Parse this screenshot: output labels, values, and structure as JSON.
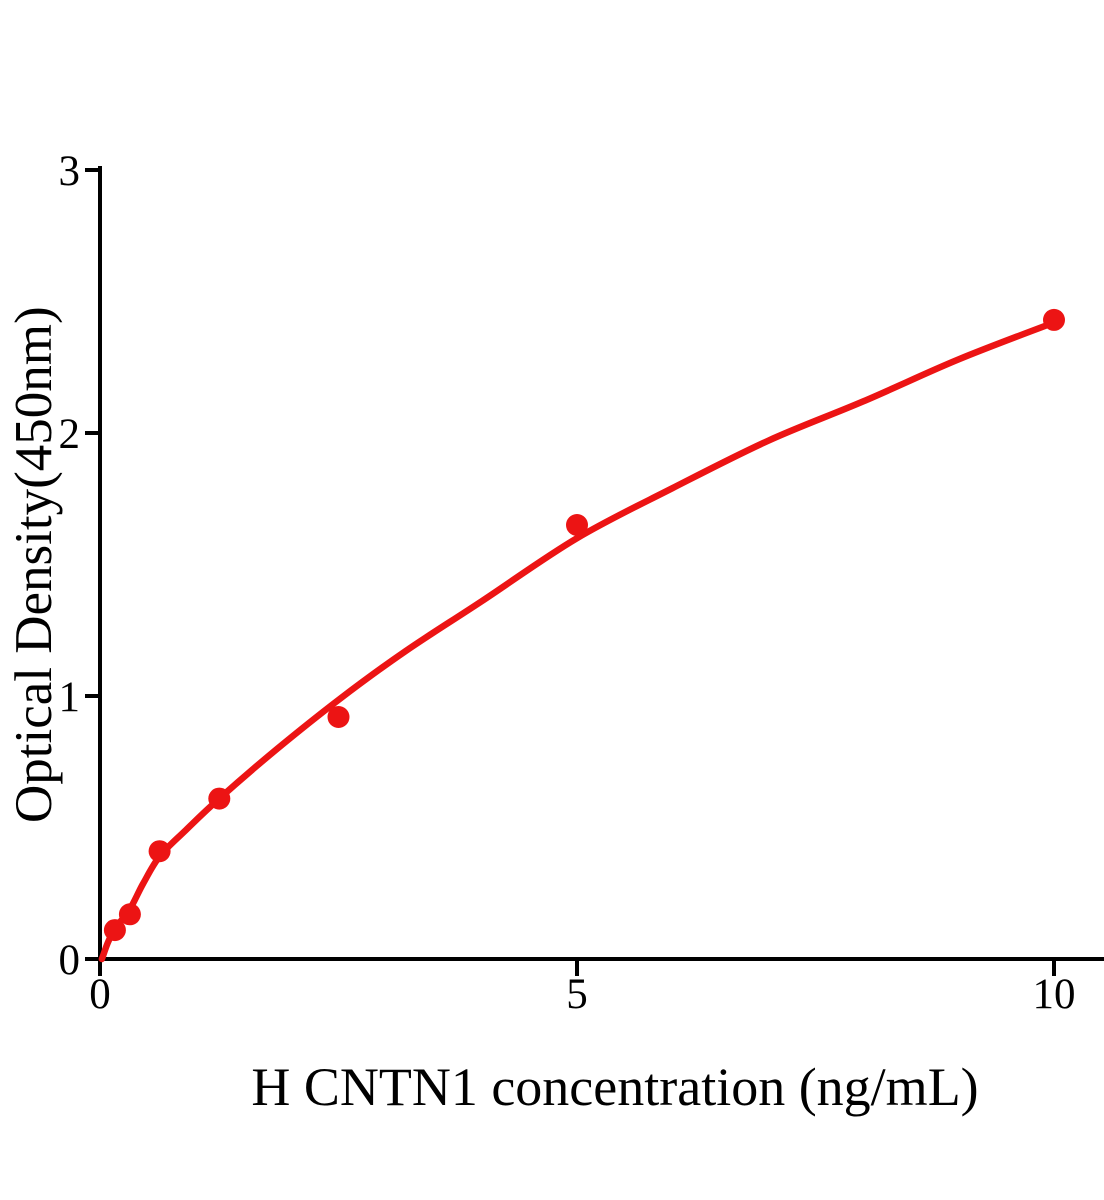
{
  "figure": {
    "background": "#ffffff"
  },
  "chart_data": {
    "type": "scatter",
    "title": "",
    "xlabel": "H CNTN1 concentration (ng/mL)",
    "ylabel": "Optical Density(450nm)",
    "xlim": [
      0,
      10.55
    ],
    "ylim": [
      0,
      3
    ],
    "x_ticks": [
      0,
      5,
      10
    ],
    "y_ticks": [
      0,
      1,
      2,
      3
    ],
    "grid": false,
    "legend": false,
    "axis_color": "#000000",
    "marker_color": "#ec1414",
    "curve_color": "#ec1414",
    "points": [
      {
        "x": 0.156,
        "y": 0.11
      },
      {
        "x": 0.313,
        "y": 0.17
      },
      {
        "x": 0.625,
        "y": 0.41
      },
      {
        "x": 1.25,
        "y": 0.61
      },
      {
        "x": 2.5,
        "y": 0.92
      },
      {
        "x": 5,
        "y": 1.65
      },
      {
        "x": 10,
        "y": 2.43
      }
    ],
    "fit_curve_points": [
      [
        0.02,
        0.0
      ],
      [
        0.08,
        0.06
      ],
      [
        0.156,
        0.115
      ],
      [
        0.313,
        0.19
      ],
      [
        0.45,
        0.285
      ],
      [
        0.625,
        0.39
      ],
      [
        0.9,
        0.49
      ],
      [
        1.25,
        0.61
      ],
      [
        1.86,
        0.8
      ],
      [
        2.5,
        0.985
      ],
      [
        3.2,
        1.17
      ],
      [
        4.0,
        1.36
      ],
      [
        5.0,
        1.6
      ],
      [
        6.0,
        1.79
      ],
      [
        7.0,
        1.97
      ],
      [
        8.0,
        2.12
      ],
      [
        9.0,
        2.28
      ],
      [
        10.0,
        2.42
      ]
    ]
  }
}
